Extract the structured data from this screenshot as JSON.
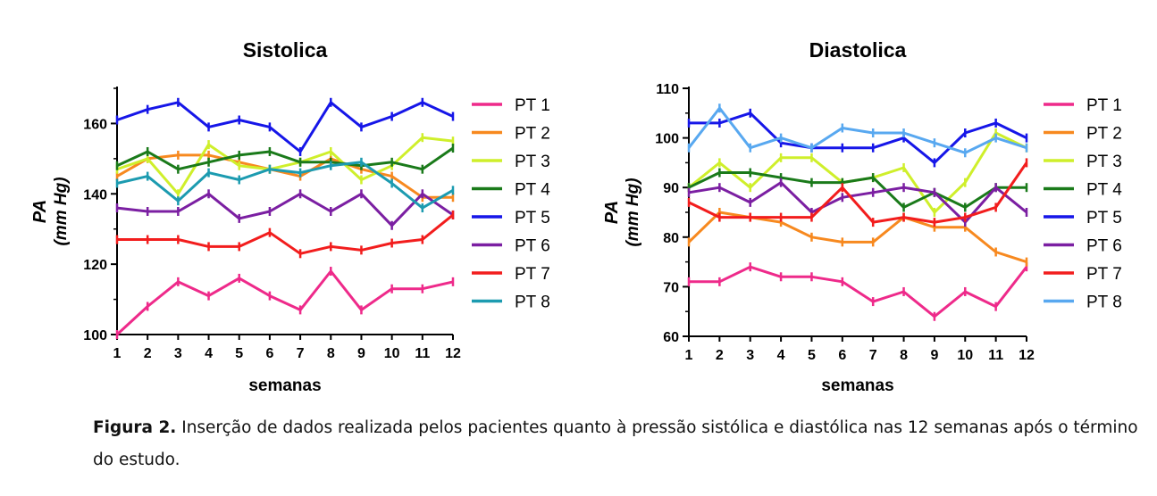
{
  "caption": {
    "label": "Figura 2.",
    "text": "Inserção de dados realizada pelos pacientes quanto à pressão sistólica e diastólica nas 12 semanas após o término do estudo."
  },
  "series_colors": [
    "#ee2a8a",
    "#f7891f",
    "#cfef2b",
    "#1a7a1a",
    "#1616e8",
    "#7b1fa2",
    "#f21d1d",
    "#1c9bb0"
  ],
  "series_colors_diastolica": [
    "#ee2a8a",
    "#f7891f",
    "#cfef2b",
    "#1a7a1a",
    "#1616e8",
    "#7b1fa2",
    "#f21d1d",
    "#58a8f0"
  ],
  "chart_data": [
    {
      "type": "line",
      "title": "Sistolica",
      "xlabel": "semanas",
      "ylabel": "PA",
      "ylabel_unit": "(mm Hg)",
      "x": [
        1,
        2,
        3,
        4,
        5,
        6,
        7,
        8,
        9,
        10,
        11,
        12
      ],
      "ylim": [
        100,
        170
      ],
      "yticks": [
        100,
        120,
        140,
        160
      ],
      "legend_position": "right",
      "series": [
        {
          "name": "PT 1",
          "values": [
            100,
            108,
            115,
            111,
            116,
            111,
            107,
            118,
            107,
            113,
            113,
            115
          ]
        },
        {
          "name": "PT 2",
          "values": [
            145,
            150,
            151,
            151,
            149,
            147,
            145,
            150,
            147,
            145,
            139,
            139
          ]
        },
        {
          "name": "PT 3",
          "values": [
            147,
            150,
            140,
            154,
            148,
            147,
            149,
            152,
            144,
            148,
            156,
            155
          ]
        },
        {
          "name": "PT 4",
          "values": [
            148,
            152,
            147,
            149,
            151,
            152,
            149,
            149,
            148,
            149,
            147,
            153
          ]
        },
        {
          "name": "PT 5",
          "values": [
            161,
            164,
            166,
            159,
            161,
            159,
            152,
            166,
            159,
            162,
            166,
            162
          ]
        },
        {
          "name": "PT 6",
          "values": [
            136,
            135,
            135,
            140,
            133,
            135,
            140,
            135,
            140,
            131,
            140,
            134
          ]
        },
        {
          "name": "PT 7",
          "values": [
            127,
            127,
            127,
            125,
            125,
            129,
            123,
            125,
            124,
            126,
            127,
            134
          ]
        },
        {
          "name": "PT 8",
          "values": [
            143,
            145,
            138,
            146,
            144,
            147,
            146,
            148,
            149,
            143,
            136,
            141
          ]
        }
      ]
    },
    {
      "type": "line",
      "title": "Diastolica",
      "xlabel": "semanas",
      "ylabel": "PA",
      "ylabel_unit": "(mm Hg)",
      "x": [
        1,
        2,
        3,
        4,
        5,
        6,
        7,
        8,
        9,
        10,
        11,
        12
      ],
      "ylim": [
        60,
        110
      ],
      "yticks": [
        60,
        70,
        80,
        90,
        100,
        110
      ],
      "legend_position": "right",
      "series": [
        {
          "name": "PT 1",
          "values": [
            71,
            71,
            74,
            72,
            72,
            71,
            67,
            69,
            64,
            69,
            66,
            74
          ]
        },
        {
          "name": "PT 2",
          "values": [
            79,
            85,
            84,
            83,
            80,
            79,
            79,
            84,
            82,
            82,
            77,
            75
          ]
        },
        {
          "name": "PT 3",
          "values": [
            90,
            95,
            90,
            96,
            96,
            91,
            92,
            94,
            85,
            91,
            101,
            98
          ]
        },
        {
          "name": "PT 4",
          "values": [
            90,
            93,
            93,
            92,
            91,
            91,
            92,
            86,
            89,
            86,
            90,
            90
          ]
        },
        {
          "name": "PT 5",
          "values": [
            103,
            103,
            105,
            99,
            98,
            98,
            98,
            100,
            95,
            101,
            103,
            100
          ]
        },
        {
          "name": "PT 6",
          "values": [
            89,
            90,
            87,
            91,
            85,
            88,
            89,
            90,
            89,
            83,
            90,
            85
          ]
        },
        {
          "name": "PT 7",
          "values": [
            87,
            84,
            84,
            84,
            84,
            90,
            83,
            84,
            83,
            84,
            86,
            95
          ]
        },
        {
          "name": "PT 8",
          "values": [
            98,
            106,
            98,
            100,
            98,
            102,
            101,
            101,
            99,
            97,
            100,
            98
          ]
        }
      ]
    }
  ]
}
